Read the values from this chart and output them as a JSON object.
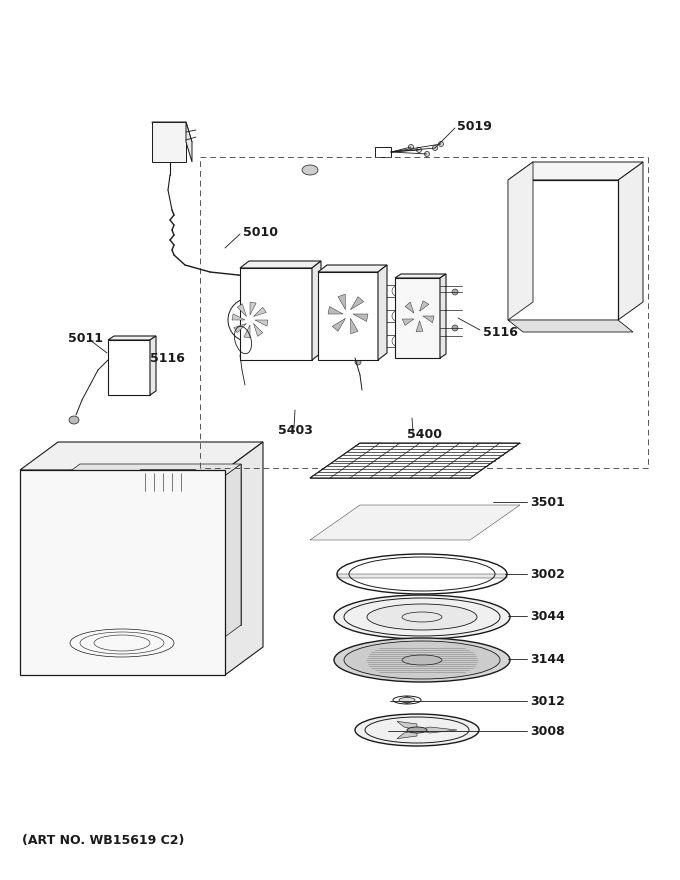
{
  "background_color": "#ffffff",
  "line_color": "#1a1a1a",
  "dashed_color": "#555555",
  "footer_text": "(ART NO. WB15619 C2)",
  "fig_width": 6.8,
  "fig_height": 8.8,
  "dpi": 100
}
